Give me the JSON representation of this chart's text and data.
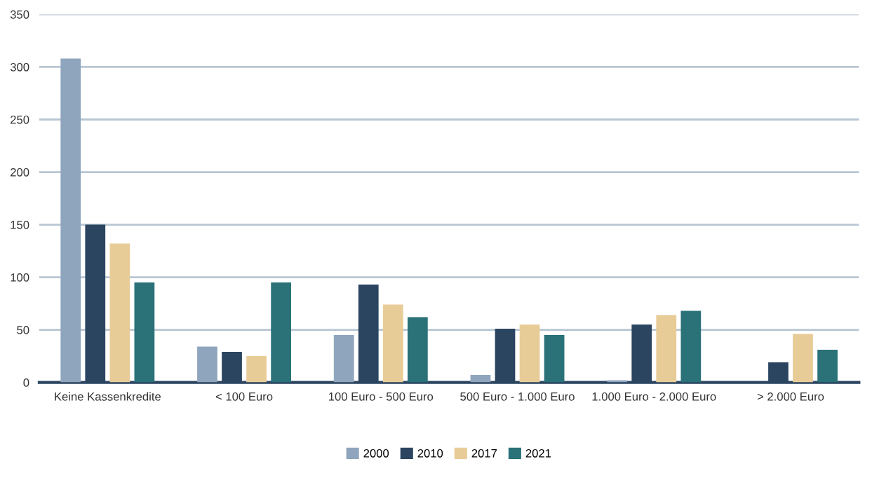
{
  "chart_data": {
    "type": "bar",
    "categories": [
      "Keine Kassenkredite",
      "< 100 Euro",
      "100 Euro - 500 Euro",
      "500 Euro - 1.000 Euro",
      "1.000 Euro - 2.000 Euro",
      "> 2.000 Euro"
    ],
    "series": [
      {
        "name": "2000",
        "color": "#8fa5bd",
        "values": [
          308,
          34,
          45,
          7,
          2,
          0
        ]
      },
      {
        "name": "2010",
        "color": "#2b4560",
        "values": [
          150,
          29,
          93,
          51,
          55,
          19
        ]
      },
      {
        "name": "2017",
        "color": "#e8cc98",
        "values": [
          132,
          25,
          74,
          55,
          64,
          46
        ]
      },
      {
        "name": "2021",
        "color": "#2a7178",
        "values": [
          95,
          95,
          62,
          45,
          68,
          31
        ]
      }
    ],
    "ylim": [
      0,
      350
    ],
    "yticks": [
      0,
      50,
      100,
      150,
      200,
      250,
      300,
      350
    ],
    "grid": "y",
    "legend": "bottom"
  }
}
